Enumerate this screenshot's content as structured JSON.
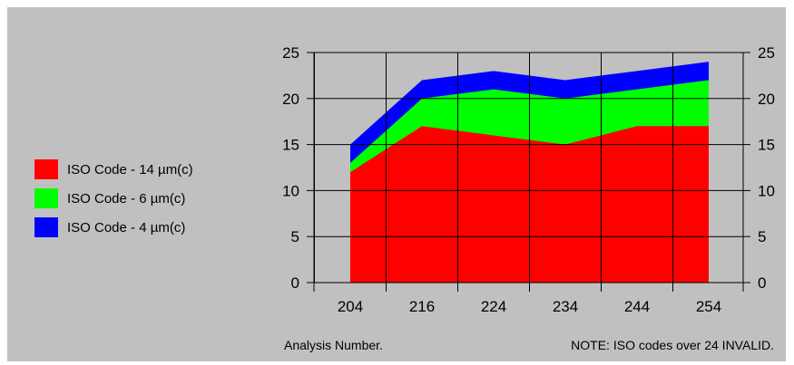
{
  "colors": {
    "background": "#c0c0c0",
    "iso14": "#ff0000",
    "iso6": "#00ff00",
    "iso4": "#0000ff",
    "grid": "#000000"
  },
  "chart_data": {
    "type": "area",
    "stacked": true,
    "categories": [
      "204",
      "216",
      "224",
      "234",
      "244",
      "254"
    ],
    "series": [
      {
        "name": "ISO Code - 14 µm(c)",
        "color": "#ff0000",
        "values": [
          12,
          17,
          16,
          15,
          17,
          17
        ]
      },
      {
        "name": "ISO Code - 6 µm(c)",
        "color": "#00ff00",
        "values": [
          13,
          20,
          21,
          20,
          21,
          22
        ]
      },
      {
        "name": "ISO Code - 4 µm(c)",
        "color": "#0000ff",
        "values": [
          15,
          22,
          23,
          22,
          23,
          24
        ]
      }
    ],
    "ylim": [
      0,
      25
    ],
    "yticks": [
      0,
      5,
      10,
      15,
      20,
      25
    ],
    "y_axis_right": true,
    "grid": true,
    "legend_position": "left",
    "xlabel": "Analysis Number.",
    "note": "NOTE: ISO codes over 24 INVALID."
  }
}
